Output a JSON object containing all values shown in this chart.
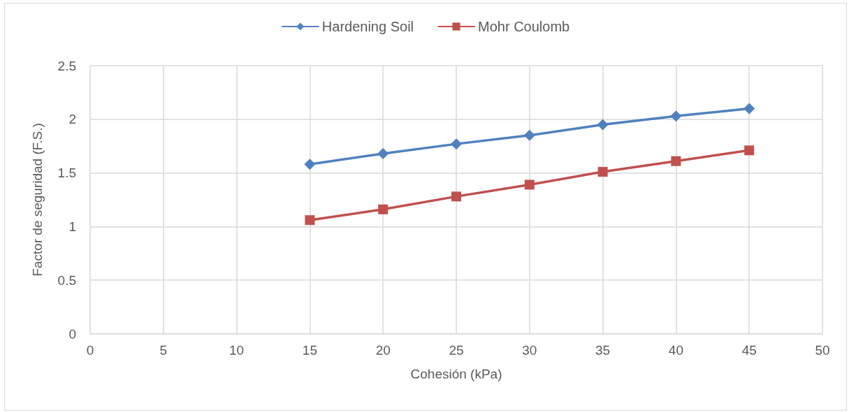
{
  "chart_data": {
    "type": "line",
    "xlabel": "Cohesión (kPa)",
    "ylabel": "Factor de seguridad (F.S.)",
    "x": [
      15,
      20,
      25,
      30,
      35,
      40,
      45
    ],
    "series": [
      {
        "name": "Hardening Soil",
        "color": "#4f81bd",
        "marker": "diamond",
        "values": [
          1.58,
          1.68,
          1.77,
          1.85,
          1.95,
          2.03,
          2.1
        ]
      },
      {
        "name": "Mohr Coulomb",
        "color": "#c0504d",
        "marker": "square",
        "values": [
          1.06,
          1.16,
          1.28,
          1.39,
          1.51,
          1.61,
          1.71
        ]
      }
    ],
    "xlim": [
      0,
      50
    ],
    "xticks": [
      0,
      5,
      10,
      15,
      20,
      25,
      30,
      35,
      40,
      45,
      50
    ],
    "ylim": [
      0,
      2.5
    ],
    "yticks": [
      0,
      0.5,
      1,
      1.5,
      2,
      2.5
    ],
    "grid": true,
    "legend": "top",
    "line_style": "solid"
  }
}
